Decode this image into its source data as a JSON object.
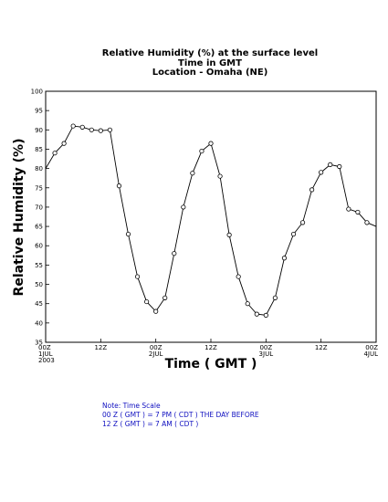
{
  "chart_data": {
    "type": "line",
    "title": [
      "Relative Humidity (%) at the surface level",
      "Time in GMT",
      "Location - Omaha (NE)"
    ],
    "xlabel": "Time ( GMT )",
    "ylabel": "Relative Humidity (%)",
    "ylim": [
      35,
      100
    ],
    "xlim": [
      0,
      72
    ],
    "y_ticks": [
      35,
      40,
      45,
      50,
      55,
      60,
      65,
      70,
      75,
      80,
      85,
      90,
      95,
      100
    ],
    "x_ticks": [
      {
        "hour": 0,
        "lines": [
          "00Z",
          "1JUL",
          "2003"
        ]
      },
      {
        "hour": 12,
        "lines": [
          "12Z"
        ]
      },
      {
        "hour": 24,
        "lines": [
          "00Z",
          "2JUL"
        ]
      },
      {
        "hour": 36,
        "lines": [
          "12Z"
        ]
      },
      {
        "hour": 48,
        "lines": [
          "00Z",
          "3JUL"
        ]
      },
      {
        "hour": 60,
        "lines": [
          "12Z"
        ]
      },
      {
        "hour": 72,
        "lines": [
          "00Z",
          "4JUL"
        ]
      }
    ],
    "grid": false,
    "series": [
      {
        "x": [
          0,
          2,
          4,
          6,
          8,
          10,
          12,
          14,
          16,
          18,
          20,
          22,
          24,
          26,
          28,
          30,
          32,
          34,
          36,
          38,
          40,
          42,
          44,
          46,
          48,
          50,
          52,
          54,
          56,
          58,
          60,
          62,
          64,
          66,
          68,
          70,
          72
        ],
        "values": [
          80,
          84,
          86.5,
          91,
          90.7,
          90,
          89.8,
          90,
          75.5,
          63,
          52,
          45.5,
          43,
          46.5,
          58,
          70,
          78.8,
          84.5,
          86.5,
          78,
          62.8,
          52,
          45,
          42.3,
          42,
          46.5,
          56.8,
          63,
          66,
          74.5,
          79,
          81,
          80.5,
          69.5,
          68.7,
          66,
          65
        ]
      }
    ]
  },
  "note": {
    "lines": [
      "Note: Time Scale",
      "00 Z ( GMT ) = 7 PM ( CDT ) THE DAY BEFORE",
      "12 Z ( GMT ) = 7 AM ( CDT )"
    ]
  }
}
